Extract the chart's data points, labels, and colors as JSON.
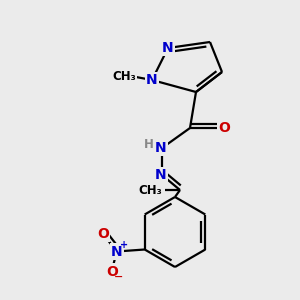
{
  "background_color": "#ebebeb",
  "bond_color": "#000000",
  "bond_width": 1.6,
  "atom_colors": {
    "N": "#0000cc",
    "O": "#cc0000",
    "C": "#000000",
    "H": "#888888"
  },
  "font_size": 10,
  "font_size_small": 8.5
}
